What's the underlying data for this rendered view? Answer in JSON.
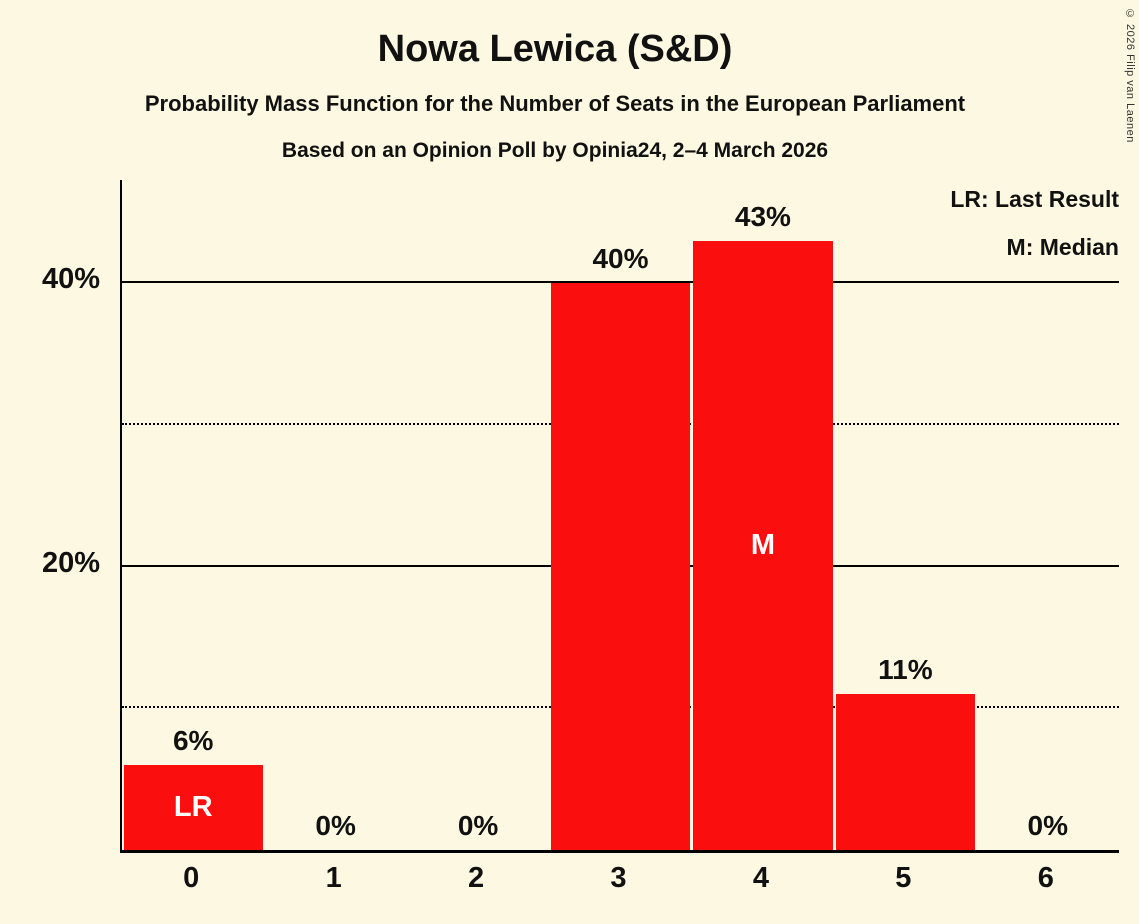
{
  "title": "Nowa Lewica (S&D)",
  "subtitle_line1": "Probability Mass Function for the Number of Seats in the European Parliament",
  "subtitle_line2": "Based on an Opinion Poll by Opinia24, 2–4 March 2026",
  "copyright": "© 2026 Filip van Laenen",
  "legend": {
    "lr_label": "LR: Last Result",
    "m_label": "M: Median"
  },
  "colors": {
    "background": "#fdf8e2",
    "bar": "#fb0e0e",
    "text": "#111111",
    "annotation_text": "#ffffff",
    "axis": "#000000"
  },
  "chart_data": {
    "type": "bar",
    "title": "Nowa Lewica (S&D)",
    "xlabel": "",
    "ylabel": "",
    "categories": [
      "0",
      "1",
      "2",
      "3",
      "4",
      "5",
      "6"
    ],
    "values": [
      6,
      0,
      0,
      40,
      43,
      11,
      0
    ],
    "value_labels": [
      "6%",
      "0%",
      "0%",
      "40%",
      "43%",
      "11%",
      "0%"
    ],
    "annotations": [
      {
        "category_index": 0,
        "text": "LR"
      },
      {
        "category_index": 4,
        "text": "M"
      }
    ],
    "ylim": [
      0,
      47.3
    ],
    "yticks": [
      {
        "value": 20,
        "label": "20%"
      },
      {
        "value": 40,
        "label": "40%"
      }
    ],
    "gridlines": [
      {
        "value": 10,
        "style": "dotted"
      },
      {
        "value": 20,
        "style": "solid"
      },
      {
        "value": 30,
        "style": "dotted"
      },
      {
        "value": 40,
        "style": "solid"
      }
    ],
    "legend_position": "top-right"
  }
}
